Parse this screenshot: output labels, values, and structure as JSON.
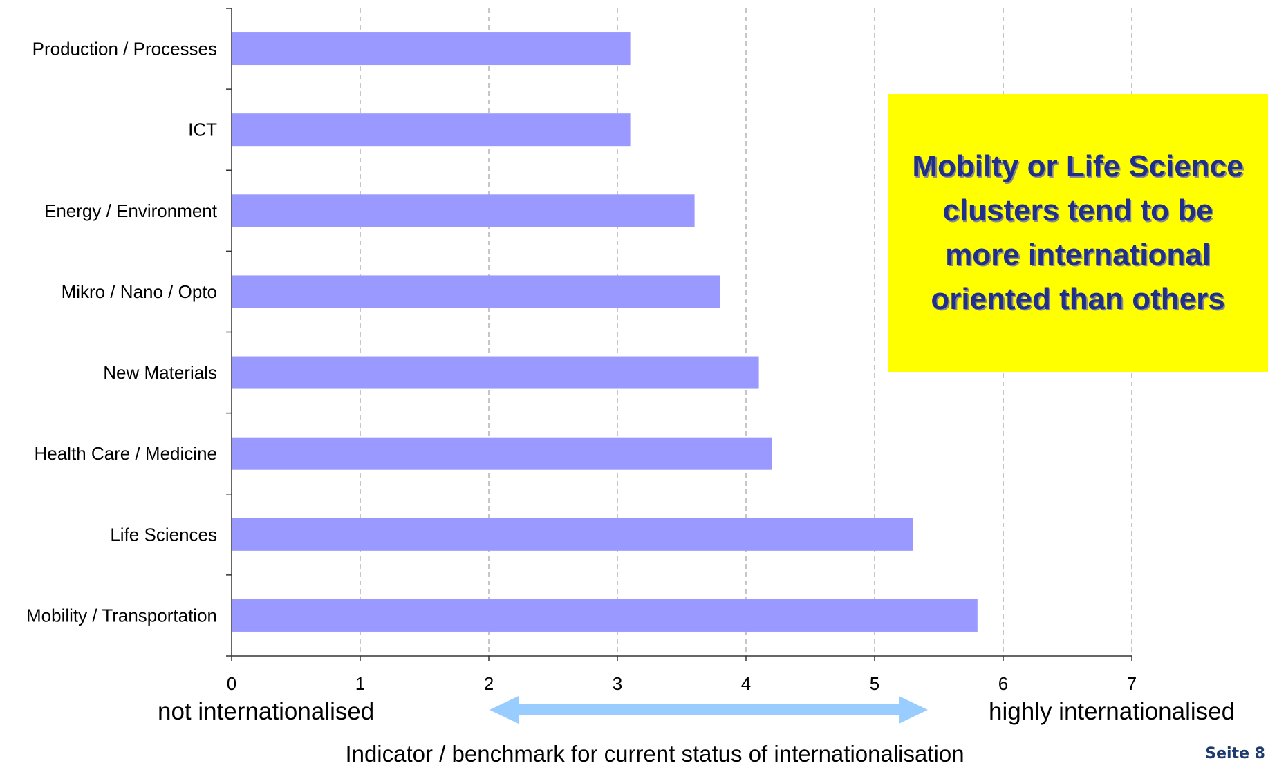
{
  "chart_data": {
    "type": "bar",
    "orientation": "horizontal",
    "categories": [
      "Production / Processes",
      "ICT",
      "Energy / Environment",
      "Mikro / Nano / Opto",
      "New Materials",
      "Health Care / Medicine",
      "Life Sciences",
      "Mobility / Transportation"
    ],
    "values": [
      3.1,
      3.1,
      3.6,
      3.8,
      4.1,
      4.2,
      5.3,
      5.8
    ],
    "title": "",
    "xlabel": "Indicator / benchmark for current status of internationalisation",
    "ylabel": "",
    "xlim": [
      0,
      7
    ],
    "xticks": [
      "0",
      "1",
      "2",
      "3",
      "4",
      "5",
      "6",
      "7"
    ],
    "grid": "vertical dashed",
    "bar_color": "#9999ff"
  },
  "scale": {
    "low_label": "not internationalised",
    "high_label": "highly internationalised",
    "arrow_color": "#99ccff"
  },
  "callout": {
    "text": "Mobilty or Life Science clusters tend to be more international oriented than others",
    "background": "#ffff00",
    "text_color": "#1f2f8a"
  },
  "footer": {
    "page_label": "Seite 8"
  }
}
